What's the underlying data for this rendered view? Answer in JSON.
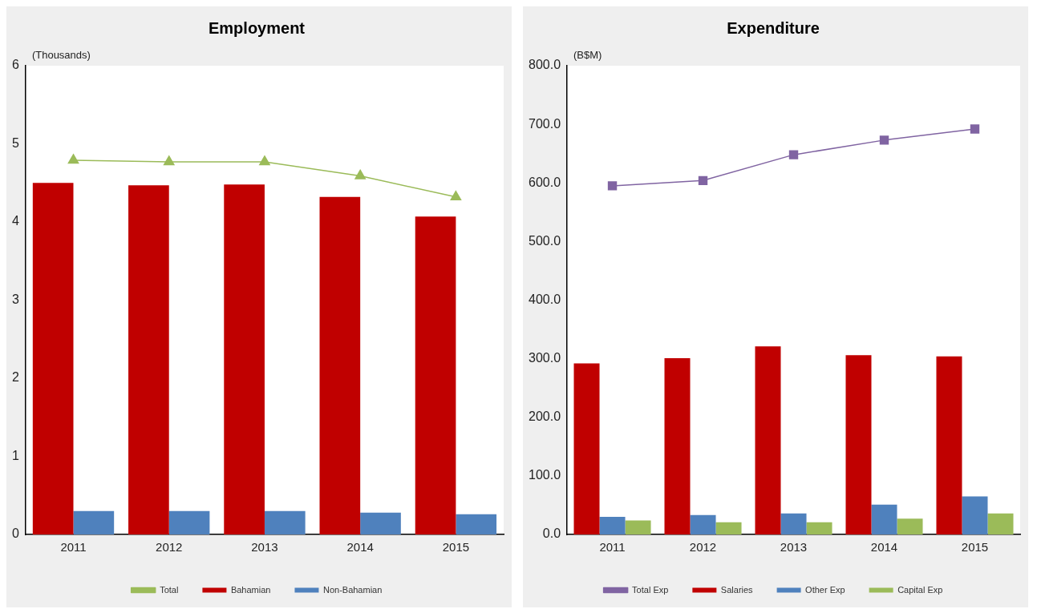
{
  "chart_data": [
    {
      "type": "bar",
      "title": "Employment",
      "ylabel": "(Thousands)",
      "categories": [
        "2011",
        "2012",
        "2013",
        "2014",
        "2015"
      ],
      "ylim": [
        0,
        6
      ],
      "yticks": [
        0,
        1,
        2,
        3,
        4,
        5,
        6
      ],
      "grid": false,
      "legend": "bottom",
      "series": [
        {
          "name": "Bahamian",
          "color": "#c00000",
          "values": [
            4.5,
            4.47,
            4.48,
            4.32,
            4.07
          ]
        },
        {
          "name": "Non-Bahamian",
          "color": "#4f81bd",
          "values": [
            0.3,
            0.3,
            0.3,
            0.28,
            0.26
          ]
        },
        {
          "name": "Total",
          "type": "line",
          "color": "#9bbb59",
          "marker": "triangle",
          "values": [
            4.79,
            4.77,
            4.77,
            4.59,
            4.32
          ]
        }
      ]
    },
    {
      "type": "bar",
      "title": "Expenditure",
      "ylabel": "(B$M)",
      "categories": [
        "2011",
        "2012",
        "2013",
        "2014",
        "2015"
      ],
      "ylim": [
        0,
        800
      ],
      "yticks": [
        {
          "value": 0,
          "label": "0.0"
        },
        {
          "value": 100,
          "label": "100.0"
        },
        {
          "value": 200,
          "label": "200.0"
        },
        {
          "value": 300,
          "label": "300.0"
        },
        {
          "value": 400,
          "label": "400.0"
        },
        {
          "value": 500,
          "label": "500.0"
        },
        {
          "value": 600,
          "label": "600.0"
        },
        {
          "value": 700,
          "label": "700.0"
        },
        {
          "value": 800,
          "label": "800.0"
        }
      ],
      "grid": false,
      "legend": "bottom",
      "series": [
        {
          "name": "Salaries",
          "color": "#c00000",
          "values": [
            292,
            301,
            321,
            306,
            304
          ]
        },
        {
          "name": "Other Exp",
          "color": "#4f81bd",
          "values": [
            30,
            33,
            36,
            51,
            65
          ]
        },
        {
          "name": "Capital Exp",
          "color": "#9bbb59",
          "values": [
            24,
            21,
            21,
            27,
            36
          ]
        },
        {
          "name": "Total Exp",
          "type": "line",
          "color": "#8064a2",
          "marker": "square",
          "values": [
            595,
            604,
            648,
            673,
            692
          ]
        }
      ]
    }
  ]
}
